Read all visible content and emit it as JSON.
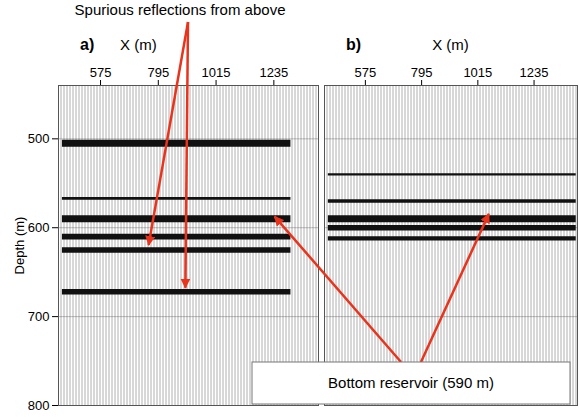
{
  "chart_data": [
    {
      "type": "seismic",
      "panel": "a)",
      "x_label": "X (m)",
      "y_label": "Depth (m)",
      "xlim": [
        415,
        1405
      ],
      "xticks": [
        575,
        795,
        1015,
        1235
      ],
      "ylim": [
        440,
        800
      ],
      "yticks": [
        500,
        600,
        700,
        800
      ],
      "grid": true,
      "reflectors": [
        {
          "depth": 505,
          "x": [
            430,
            1300
          ],
          "amplitude": 1
        },
        {
          "depth": 567,
          "x": [
            430,
            1300
          ],
          "amplitude": 0.4
        },
        {
          "depth": 590,
          "x": [
            430,
            1300
          ],
          "amplitude": 1
        },
        {
          "depth": 610,
          "x": [
            430,
            1300
          ],
          "amplitude": 0.8
        },
        {
          "depth": 625,
          "x": [
            430,
            1300
          ],
          "amplitude": 0.8
        },
        {
          "depth": 672,
          "x": [
            430,
            1300
          ],
          "amplitude": 0.8
        }
      ]
    },
    {
      "type": "seismic",
      "panel": "b)",
      "x_label": "X (m)",
      "xlim": [
        415,
        1405
      ],
      "xticks": [
        575,
        795,
        1015,
        1235
      ],
      "ylim": [
        440,
        800
      ],
      "yticks": [
        500,
        600,
        700,
        800
      ],
      "grid": true,
      "tick_labels": "x",
      "reflectors": [
        {
          "depth": 540,
          "x": [
            430,
            1400
          ],
          "amplitude": 0.3
        },
        {
          "depth": 570,
          "x": [
            430,
            1400
          ],
          "amplitude": 0.5
        },
        {
          "depth": 590,
          "x": [
            430,
            1400
          ],
          "amplitude": 1
        },
        {
          "depth": 600,
          "x": [
            430,
            1400
          ],
          "amplitude": 0.8
        },
        {
          "depth": 612,
          "x": [
            430,
            1400
          ],
          "amplitude": 0.6
        }
      ]
    }
  ],
  "annotations": [
    {
      "text": "Spurious reflections from above",
      "targets": [
        {
          "panel": "a)",
          "x": 760,
          "y": 620
        },
        {
          "panel": "a)",
          "x": 900,
          "y": 668
        }
      ]
    },
    {
      "text": "Bottom reservoir (590 m)",
      "targets": [
        {
          "panel": "a)",
          "x": 1240,
          "y": 588
        },
        {
          "panel": "b)",
          "x": 1060,
          "y": 585
        }
      ]
    }
  ]
}
